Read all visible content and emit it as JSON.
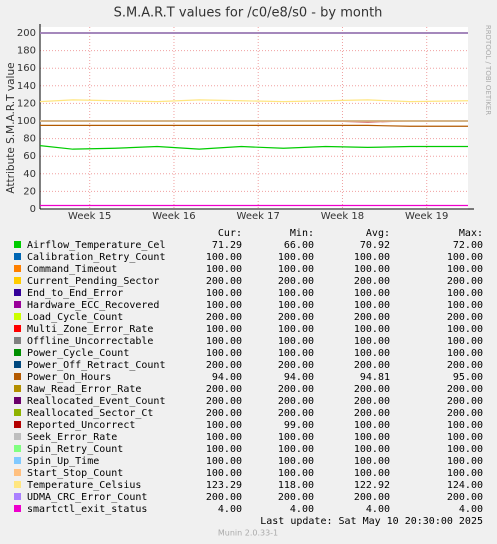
{
  "chart_data": {
    "type": "line",
    "title": "S.M.A.R.T values for /c0/e8/s0 - by month",
    "y_label": "Attribute S.M.A.R.T value",
    "side_text": "RRDTOOL / TOBI OETIKER",
    "x": [
      14.41,
      14.8,
      15.3,
      15.8,
      16.3,
      16.8,
      17.3,
      17.8,
      18.3,
      18.8,
      19.49
    ],
    "xlim": [
      14.41,
      19.49
    ],
    "xticks": [
      {
        "value": 15,
        "label": "Week 15"
      },
      {
        "value": 16,
        "label": "Week 16"
      },
      {
        "value": 17,
        "label": "Week 17"
      },
      {
        "value": 18,
        "label": "Week 18"
      },
      {
        "value": 19,
        "label": "Week 19"
      }
    ],
    "ylim": [
      0,
      200
    ],
    "yticks": [
      0,
      20,
      40,
      60,
      80,
      100,
      120,
      140,
      160,
      180,
      200
    ],
    "grid": true,
    "legend_headers": [
      "Cur:",
      "Min:",
      "Avg:",
      "Max:"
    ],
    "series": [
      {
        "name": "Airflow_Temperature_Cel",
        "color": "#00cc00",
        "values": [
          72,
          68,
          69,
          71,
          68,
          71,
          69,
          71,
          70,
          71,
          71
        ],
        "stats": [
          "71.29",
          "66.00",
          "70.92",
          "72.00"
        ]
      },
      {
        "name": "Calibration_Retry_Count",
        "color": "#0066b3",
        "values": [
          100,
          100,
          100,
          100,
          100,
          100,
          100,
          100,
          100,
          100,
          100
        ],
        "stats": [
          "100.00",
          "100.00",
          "100.00",
          "100.00"
        ]
      },
      {
        "name": "Command_Timeout",
        "color": "#ff8000",
        "values": [
          100,
          100,
          100,
          100,
          100,
          100,
          100,
          100,
          100,
          100,
          100
        ],
        "stats": [
          "100.00",
          "100.00",
          "100.00",
          "100.00"
        ]
      },
      {
        "name": "Current_Pending_Sector",
        "color": "#ffcc00",
        "values": [
          200,
          200,
          200,
          200,
          200,
          200,
          200,
          200,
          200,
          200,
          200
        ],
        "stats": [
          "200.00",
          "200.00",
          "200.00",
          "200.00"
        ]
      },
      {
        "name": "End_to_End_Error",
        "color": "#330099",
        "values": [
          100,
          100,
          100,
          100,
          100,
          100,
          100,
          100,
          100,
          100,
          100
        ],
        "stats": [
          "100.00",
          "100.00",
          "100.00",
          "100.00"
        ]
      },
      {
        "name": "Hardware_ECC_Recovered",
        "color": "#990099",
        "values": [
          100,
          100,
          100,
          100,
          100,
          100,
          100,
          100,
          100,
          100,
          100
        ],
        "stats": [
          "100.00",
          "100.00",
          "100.00",
          "100.00"
        ]
      },
      {
        "name": "Load_Cycle_Count",
        "color": "#ccff00",
        "values": [
          200,
          200,
          200,
          200,
          200,
          200,
          200,
          200,
          200,
          200,
          200
        ],
        "stats": [
          "200.00",
          "200.00",
          "200.00",
          "200.00"
        ]
      },
      {
        "name": "Multi_Zone_Error_Rate",
        "color": "#ff0000",
        "values": [
          100,
          100,
          100,
          100,
          100,
          100,
          100,
          100,
          100,
          100,
          100
        ],
        "stats": [
          "100.00",
          "100.00",
          "100.00",
          "100.00"
        ]
      },
      {
        "name": "Offline_Uncorrectable",
        "color": "#808080",
        "values": [
          100,
          100,
          100,
          100,
          100,
          100,
          100,
          100,
          100,
          100,
          100
        ],
        "stats": [
          "100.00",
          "100.00",
          "100.00",
          "100.00"
        ]
      },
      {
        "name": "Power_Cycle_Count",
        "color": "#008f00",
        "values": [
          100,
          100,
          100,
          100,
          100,
          100,
          100,
          100,
          100,
          100,
          100
        ],
        "stats": [
          "100.00",
          "100.00",
          "100.00",
          "100.00"
        ]
      },
      {
        "name": "Power_Off_Retract_Count",
        "color": "#00487d",
        "values": [
          200,
          200,
          200,
          200,
          200,
          200,
          200,
          200,
          200,
          200,
          200
        ],
        "stats": [
          "200.00",
          "200.00",
          "200.00",
          "200.00"
        ]
      },
      {
        "name": "Power_On_Hours",
        "color": "#b35a00",
        "values": [
          95,
          95,
          95,
          95,
          95,
          95,
          95,
          95,
          95,
          94,
          94
        ],
        "stats": [
          "94.00",
          "94.00",
          "94.81",
          "95.00"
        ]
      },
      {
        "name": "Raw_Read_Error_Rate",
        "color": "#b38f00",
        "values": [
          200,
          200,
          200,
          200,
          200,
          200,
          200,
          200,
          200,
          200,
          200
        ],
        "stats": [
          "200.00",
          "200.00",
          "200.00",
          "200.00"
        ]
      },
      {
        "name": "Reallocated_Event_Count",
        "color": "#6b006b",
        "values": [
          200,
          200,
          200,
          200,
          200,
          200,
          200,
          200,
          200,
          200,
          200
        ],
        "stats": [
          "200.00",
          "200.00",
          "200.00",
          "200.00"
        ]
      },
      {
        "name": "Reallocated_Sector_Ct",
        "color": "#8fb300",
        "values": [
          200,
          200,
          200,
          200,
          200,
          200,
          200,
          200,
          200,
          200,
          200
        ],
        "stats": [
          "200.00",
          "200.00",
          "200.00",
          "200.00"
        ]
      },
      {
        "name": "Reported_Uncorrect",
        "color": "#b30000",
        "values": [
          100,
          100,
          100,
          100,
          100,
          100,
          100,
          100,
          99,
          100,
          100
        ],
        "stats": [
          "100.00",
          "99.00",
          "100.00",
          "100.00"
        ]
      },
      {
        "name": "Seek_Error_Rate",
        "color": "#bebebe",
        "values": [
          100,
          100,
          100,
          100,
          100,
          100,
          100,
          100,
          100,
          100,
          100
        ],
        "stats": [
          "100.00",
          "100.00",
          "100.00",
          "100.00"
        ]
      },
      {
        "name": "Spin_Retry_Count",
        "color": "#80ff80",
        "values": [
          100,
          100,
          100,
          100,
          100,
          100,
          100,
          100,
          100,
          100,
          100
        ],
        "stats": [
          "100.00",
          "100.00",
          "100.00",
          "100.00"
        ]
      },
      {
        "name": "Spin_Up_Time",
        "color": "#80c9ff",
        "values": [
          100,
          100,
          100,
          100,
          100,
          100,
          100,
          100,
          100,
          100,
          100
        ],
        "stats": [
          "100.00",
          "100.00",
          "100.00",
          "100.00"
        ]
      },
      {
        "name": "Start_Stop_Count",
        "color": "#ffc080",
        "values": [
          100,
          100,
          100,
          100,
          100,
          100,
          100,
          100,
          100,
          100,
          100
        ],
        "stats": [
          "100.00",
          "100.00",
          "100.00",
          "100.00"
        ]
      },
      {
        "name": "Temperature_Celsius",
        "color": "#ffe680",
        "values": [
          122,
          124,
          123,
          122,
          124,
          123,
          122,
          123,
          124,
          122,
          123
        ],
        "stats": [
          "123.29",
          "118.00",
          "122.92",
          "124.00"
        ]
      },
      {
        "name": "UDMA_CRC_Error_Count",
        "color": "#aa80ff",
        "values": [
          200,
          200,
          200,
          200,
          200,
          200,
          200,
          200,
          200,
          200,
          200
        ],
        "stats": [
          "200.00",
          "200.00",
          "200.00",
          "200.00"
        ]
      },
      {
        "name": "smartctl_exit_status",
        "color": "#ee00cc",
        "values": [
          4,
          4,
          4,
          4,
          4,
          4,
          4,
          4,
          4,
          4,
          4
        ],
        "stats": [
          "4.00",
          "4.00",
          "4.00",
          "4.00"
        ]
      }
    ],
    "last_update": "Last update:  Sat May 10 20:30:00 2025",
    "footer": "Munin 2.0.33-1"
  }
}
